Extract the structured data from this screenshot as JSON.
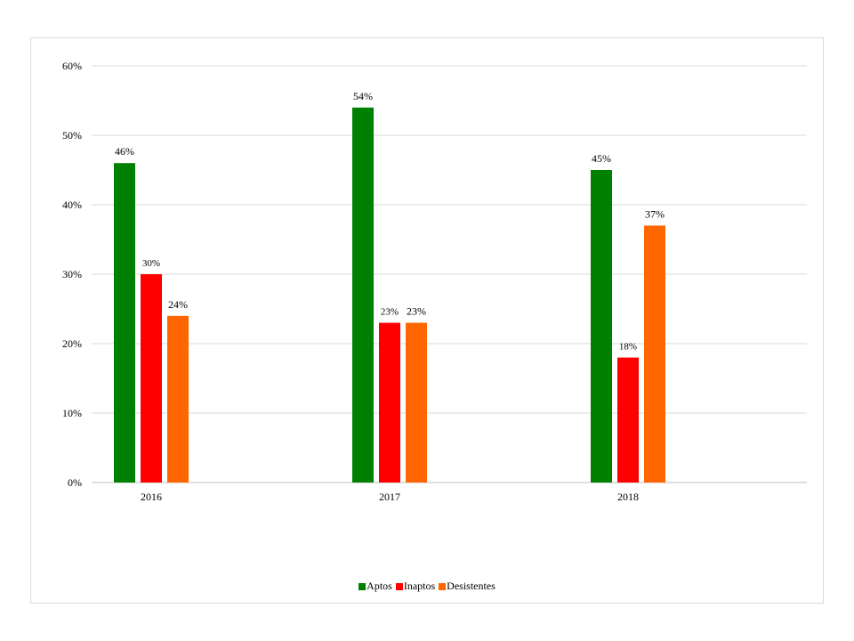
{
  "chart_data": {
    "type": "bar",
    "categories": [
      "2016",
      "2017",
      "2018"
    ],
    "series": [
      {
        "name": "Aptos",
        "color": "#008000",
        "values": [
          46,
          54,
          45
        ],
        "labels": [
          "46%",
          "54%",
          "45%"
        ]
      },
      {
        "name": "Inaptos",
        "color": "#ff0000",
        "values": [
          30,
          23,
          18
        ],
        "labels": [
          "30%",
          "23%",
          "18%"
        ]
      },
      {
        "name": "Desistentes",
        "color": "#ff6600",
        "values": [
          24,
          23,
          37
        ],
        "labels": [
          "24%",
          "23%",
          "37%"
        ]
      }
    ],
    "ylim": [
      0,
      60
    ],
    "yticks": [
      0,
      10,
      20,
      30,
      40,
      50,
      60
    ],
    "ytick_labels": [
      "0%",
      "10%",
      "20%",
      "30%",
      "40%",
      "50%",
      "60%"
    ],
    "grid": true,
    "legend_position": "bottom"
  }
}
